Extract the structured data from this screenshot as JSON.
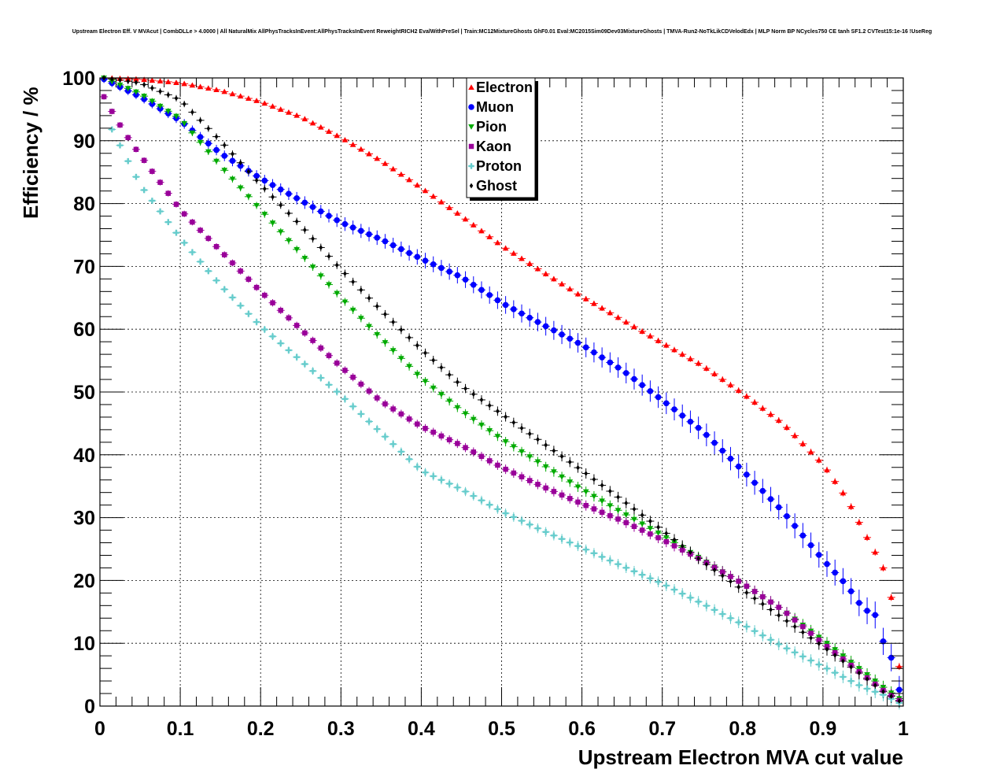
{
  "chart_data": {
    "type": "scatter",
    "title": "Upstream Electron Eff. V MVAcut | CombDLLe > 4.0000 | All NaturalMix AllPhysTracksInEvent:AllPhysTracksInEvent ReweightRICH2 EvalWithPreSel | Train:MC12MixtureGhosts GhF0.01 Eval:MC2015Sim09Dev03MixtureGhosts | TMVA-Run2-NoTkLikCDVelodEdx | MLP Norm BP NCycles750 CE tanh SF1.2 CVTest15:1e-16 !UseReg",
    "xlabel": "Upstream Electron MVA cut value",
    "ylabel": "Efficiency / %",
    "xlim": [
      0,
      1
    ],
    "ylim": [
      0,
      100
    ],
    "x_ticks": [
      "0",
      "0.1",
      "0.2",
      "0.3",
      "0.4",
      "0.5",
      "0.6",
      "0.7",
      "0.8",
      "0.9",
      "1"
    ],
    "y_ticks": [
      "0",
      "10",
      "20",
      "30",
      "40",
      "50",
      "60",
      "70",
      "80",
      "90",
      "100"
    ],
    "grid": true,
    "legend_position": "top-center",
    "x_start": 0.005,
    "x_step": 0.01,
    "series": [
      {
        "name": "Electron",
        "color": "#ff0000",
        "marker": "triangle-up",
        "anchors": [
          [
            0.005,
            100
          ],
          [
            0.05,
            99.8
          ],
          [
            0.1,
            99.2
          ],
          [
            0.15,
            98
          ],
          [
            0.2,
            96.2
          ],
          [
            0.25,
            93.8
          ],
          [
            0.3,
            90.5
          ],
          [
            0.35,
            86.8
          ],
          [
            0.4,
            82.5
          ],
          [
            0.45,
            78
          ],
          [
            0.5,
            73.3
          ],
          [
            0.55,
            69.2
          ],
          [
            0.6,
            65.2
          ],
          [
            0.65,
            61.5
          ],
          [
            0.7,
            57.8
          ],
          [
            0.75,
            54.2
          ],
          [
            0.8,
            49.8
          ],
          [
            0.85,
            45
          ],
          [
            0.9,
            38.5
          ],
          [
            0.93,
            33
          ],
          [
            0.95,
            28
          ],
          [
            0.965,
            24.5
          ],
          [
            0.975,
            22
          ],
          [
            0.985,
            17.3
          ],
          [
            0.995,
            6.3
          ]
        ]
      },
      {
        "name": "Muon",
        "color": "#0000ff",
        "marker": "circle",
        "anchors": [
          [
            0.005,
            99.8
          ],
          [
            0.05,
            97
          ],
          [
            0.1,
            93.2
          ],
          [
            0.15,
            88
          ],
          [
            0.2,
            84
          ],
          [
            0.25,
            80.5
          ],
          [
            0.3,
            77
          ],
          [
            0.35,
            74.3
          ],
          [
            0.4,
            71.2
          ],
          [
            0.45,
            68.3
          ],
          [
            0.5,
            64.2
          ],
          [
            0.55,
            60.8
          ],
          [
            0.6,
            57.5
          ],
          [
            0.65,
            53.5
          ],
          [
            0.7,
            48.7
          ],
          [
            0.75,
            43.8
          ],
          [
            0.8,
            37.5
          ],
          [
            0.85,
            31
          ],
          [
            0.9,
            23.3
          ],
          [
            0.93,
            19.2
          ],
          [
            0.95,
            15.5
          ],
          [
            0.965,
            14.5
          ],
          [
            0.975,
            10.3
          ],
          [
            0.985,
            7.7
          ],
          [
            0.995,
            2.6
          ]
        ]
      },
      {
        "name": "Pion",
        "color": "#00aa00",
        "marker": "triangle-down",
        "anchors": [
          [
            0.005,
            100
          ],
          [
            0.05,
            97.5
          ],
          [
            0.1,
            93.5
          ],
          [
            0.15,
            86
          ],
          [
            0.2,
            79
          ],
          [
            0.25,
            72
          ],
          [
            0.3,
            65
          ],
          [
            0.35,
            58.5
          ],
          [
            0.4,
            52.2
          ],
          [
            0.45,
            47
          ],
          [
            0.5,
            42.5
          ],
          [
            0.55,
            38.5
          ],
          [
            0.6,
            34.5
          ],
          [
            0.65,
            30.8
          ],
          [
            0.7,
            27.2
          ],
          [
            0.75,
            23.3
          ],
          [
            0.8,
            19.5
          ],
          [
            0.85,
            15.3
          ],
          [
            0.9,
            10.5
          ],
          [
            0.95,
            5.5
          ],
          [
            0.975,
            3
          ],
          [
            0.995,
            1.2
          ]
        ]
      },
      {
        "name": "Kaon",
        "color": "#990099",
        "marker": "square",
        "anchors": [
          [
            0.005,
            97
          ],
          [
            0.02,
            93.5
          ],
          [
            0.04,
            89.5
          ],
          [
            0.06,
            86
          ],
          [
            0.1,
            79
          ],
          [
            0.15,
            72.5
          ],
          [
            0.2,
            66
          ],
          [
            0.25,
            60
          ],
          [
            0.3,
            54
          ],
          [
            0.35,
            48.5
          ],
          [
            0.4,
            44.5
          ],
          [
            0.45,
            41.5
          ],
          [
            0.5,
            38
          ],
          [
            0.55,
            35
          ],
          [
            0.6,
            32.2
          ],
          [
            0.65,
            29.5
          ],
          [
            0.7,
            26.5
          ],
          [
            0.75,
            23.2
          ],
          [
            0.8,
            19.5
          ],
          [
            0.85,
            15.3
          ],
          [
            0.9,
            10
          ],
          [
            0.95,
            5
          ],
          [
            0.975,
            2.5
          ],
          [
            0.995,
            0.9
          ]
        ]
      },
      {
        "name": "Proton",
        "color": "#66cccc",
        "marker": "cross",
        "anchors": [
          [
            0.015,
            91.8
          ],
          [
            0.03,
            88
          ],
          [
            0.05,
            83
          ],
          [
            0.1,
            74.5
          ],
          [
            0.15,
            67
          ],
          [
            0.2,
            60.5
          ],
          [
            0.25,
            55
          ],
          [
            0.3,
            49.5
          ],
          [
            0.35,
            43.5
          ],
          [
            0.4,
            37.5
          ],
          [
            0.45,
            34.5
          ],
          [
            0.5,
            31
          ],
          [
            0.55,
            28
          ],
          [
            0.6,
            25.2
          ],
          [
            0.65,
            22.3
          ],
          [
            0.7,
            19.5
          ],
          [
            0.75,
            16.3
          ],
          [
            0.8,
            13
          ],
          [
            0.85,
            9.5
          ],
          [
            0.9,
            6.3
          ],
          [
            0.95,
            3
          ],
          [
            0.975,
            1.8
          ],
          [
            0.995,
            0.5
          ]
        ]
      },
      {
        "name": "Ghost",
        "color": "#000000",
        "marker": "diamond",
        "anchors": [
          [
            0.005,
            100
          ],
          [
            0.05,
            99.2
          ],
          [
            0.1,
            96.5
          ],
          [
            0.15,
            90
          ],
          [
            0.2,
            83
          ],
          [
            0.25,
            76.5
          ],
          [
            0.3,
            69.5
          ],
          [
            0.35,
            63
          ],
          [
            0.4,
            56.8
          ],
          [
            0.45,
            51
          ],
          [
            0.5,
            46.5
          ],
          [
            0.55,
            42
          ],
          [
            0.6,
            37.5
          ],
          [
            0.65,
            32.8
          ],
          [
            0.7,
            28
          ],
          [
            0.75,
            23
          ],
          [
            0.8,
            18.5
          ],
          [
            0.85,
            14
          ],
          [
            0.9,
            9.5
          ],
          [
            0.95,
            4.8
          ],
          [
            0.975,
            2.3
          ],
          [
            0.995,
            0.8
          ]
        ]
      }
    ]
  }
}
